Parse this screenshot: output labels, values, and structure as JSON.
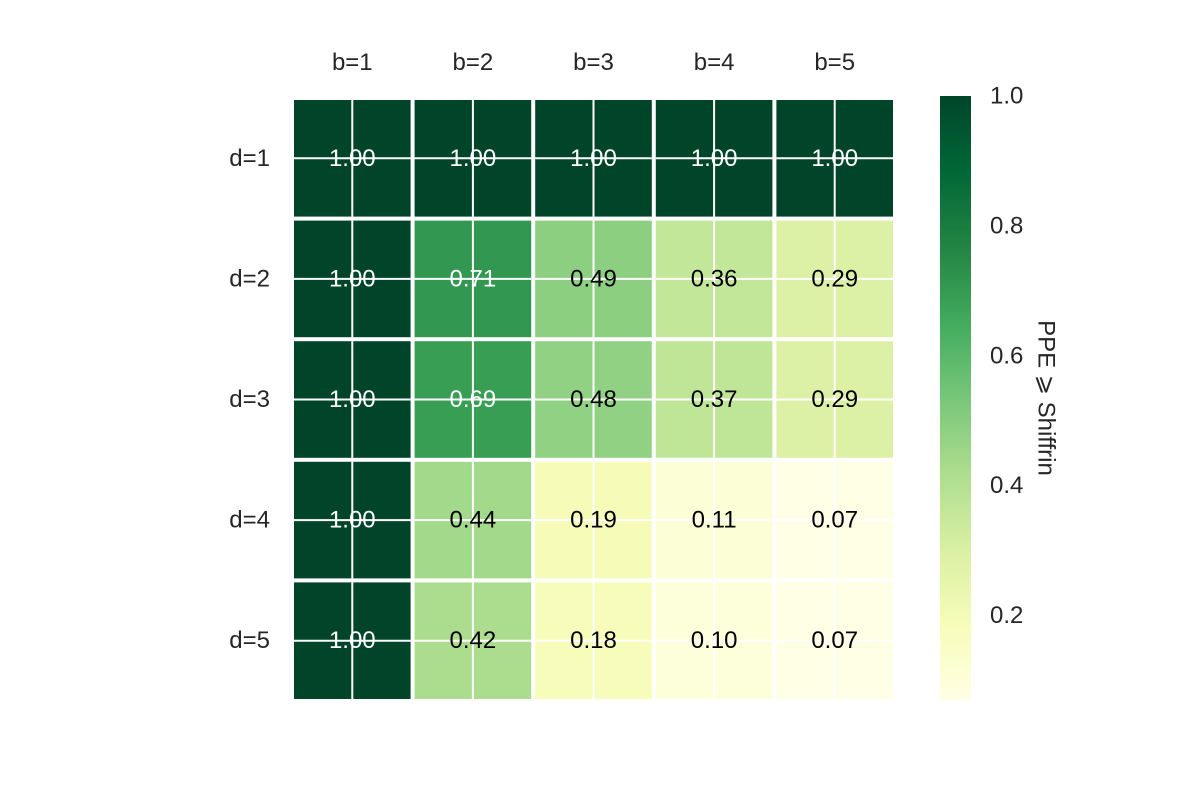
{
  "chart_data": {
    "type": "heatmap",
    "title": "",
    "xlabel": "",
    "ylabel": "",
    "x_categories": [
      "b=1",
      "b=2",
      "b=3",
      "b=4",
      "b=5"
    ],
    "y_categories": [
      "d=1",
      "d=2",
      "d=3",
      "d=4",
      "d=5"
    ],
    "values": [
      [
        1.0,
        1.0,
        1.0,
        1.0,
        1.0
      ],
      [
        1.0,
        0.71,
        0.49,
        0.36,
        0.29
      ],
      [
        1.0,
        0.69,
        0.48,
        0.37,
        0.29
      ],
      [
        1.0,
        0.44,
        0.19,
        0.11,
        0.07
      ],
      [
        1.0,
        0.42,
        0.18,
        0.1,
        0.07
      ]
    ],
    "value_labels": [
      [
        "1.00",
        "1.00",
        "1.00",
        "1.00",
        "1.00"
      ],
      [
        "1.00",
        "0.71",
        "0.49",
        "0.36",
        "0.29"
      ],
      [
        "1.00",
        "0.69",
        "0.48",
        "0.37",
        "0.29"
      ],
      [
        "1.00",
        "0.44",
        "0.19",
        "0.11",
        "0.07"
      ],
      [
        "1.00",
        "0.42",
        "0.18",
        "0.10",
        "0.07"
      ]
    ],
    "colormap": "YlGn",
    "colorbar": {
      "label": "PPE ⩾ Shiffrin",
      "range": [
        0.07,
        1.0
      ],
      "ticks": [
        0.2,
        0.4,
        0.6,
        0.8,
        1.0
      ],
      "tick_labels": [
        "0.2",
        "0.4",
        "0.6",
        "0.8",
        "1.0"
      ],
      "placement": "right"
    },
    "x_tick_position": "top",
    "grid": true
  }
}
